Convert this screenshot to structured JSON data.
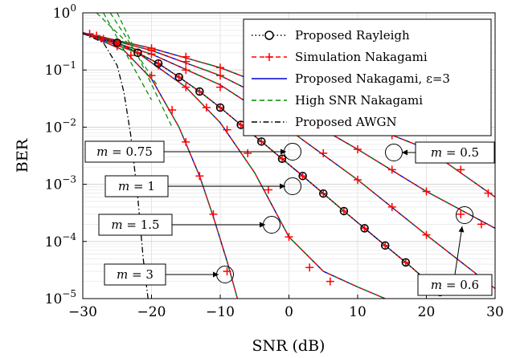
{
  "chart_data": {
    "type": "line",
    "xlabel": "SNR (dB)",
    "ylabel": "BER",
    "xlim": [
      -30,
      30
    ],
    "ylim": [
      1e-05,
      1
    ],
    "yscale": "log",
    "grid": true,
    "legend_position": "top-right",
    "x_ticks": [
      -30,
      -20,
      -10,
      0,
      10,
      20,
      30
    ],
    "x_tick_labels": [
      "−30",
      "−20",
      "−10",
      "0",
      "10",
      "20",
      "30"
    ],
    "y_tick_labels": [
      {
        "base": "10",
        "exp": "0",
        "value": 1
      },
      {
        "base": "10",
        "exp": "−1",
        "value": 0.1
      },
      {
        "base": "10",
        "exp": "−2",
        "value": 0.01
      },
      {
        "base": "10",
        "exp": "−3",
        "value": 0.001
      },
      {
        "base": "10",
        "exp": "−4",
        "value": 0.0001
      },
      {
        "base": "10",
        "exp": "−5",
        "value": 1e-05
      }
    ],
    "legend": [
      {
        "label": "Proposed Rayleigh",
        "color": "#000000",
        "style": "dotted-circle"
      },
      {
        "label": "Simulation Nakagami",
        "color": "#ff0000",
        "style": "dashed-plus"
      },
      {
        "label": "Proposed Nakagami, ε=3",
        "color": "#0000cc",
        "style": "solid"
      },
      {
        "label": "High SNR Nakagami",
        "color": "#008800",
        "style": "dashed"
      },
      {
        "label": "Proposed AWGN",
        "color": "#000000",
        "style": "dashdot"
      }
    ],
    "annotations": [
      {
        "var": "m",
        "text": " = 0.75"
      },
      {
        "var": "m",
        "text": " = 0.5"
      },
      {
        "var": "m",
        "text": " = 1"
      },
      {
        "var": "m",
        "text": " = 1.5"
      },
      {
        "var": "m",
        "text": " = 3"
      },
      {
        "var": "m",
        "text": " = 0.6"
      }
    ],
    "series": [
      {
        "m": 0.5,
        "x": [
          -30,
          -20,
          -10,
          0,
          10,
          20,
          30
        ],
        "y": [
          0.45,
          0.24,
          0.11,
          0.038,
          0.0125,
          0.0042,
          0.0006
        ]
      },
      {
        "m": 0.6,
        "x": [
          -30,
          -20,
          -10,
          0,
          10,
          20,
          30
        ],
        "y": [
          0.45,
          0.22,
          0.08,
          0.02,
          0.0041,
          0.00075,
          0.00017
        ]
      },
      {
        "m": 0.75,
        "x": [
          -30,
          -20,
          -10,
          0,
          10,
          20,
          30
        ],
        "y": [
          0.45,
          0.19,
          0.055,
          0.009,
          0.0012,
          0.00013,
          1.5e-05
        ]
      },
      {
        "m": 1,
        "name": "Proposed Rayleigh",
        "x": [
          -30,
          -25,
          -22,
          -19,
          -16,
          -13,
          -10,
          -7,
          -4,
          -1,
          2,
          5,
          8,
          11,
          14,
          17,
          20,
          22
        ],
        "y": [
          0.43,
          0.3,
          0.2,
          0.13,
          0.075,
          0.042,
          0.022,
          0.011,
          0.0056,
          0.0028,
          0.0014,
          0.00069,
          0.00034,
          0.00017,
          8.5e-05,
          4.3e-05,
          2.1e-05,
          1.3e-05
        ]
      },
      {
        "m": 1.5,
        "x": [
          -30,
          -22,
          -15,
          -10,
          -5,
          0,
          5,
          10,
          14
        ],
        "y": [
          0.45,
          0.2,
          0.05,
          0.012,
          0.0016,
          0.00012,
          3e-05,
          1.6e-05,
          1e-05
        ]
      },
      {
        "m": 3,
        "x": [
          -30,
          -24,
          -20,
          -16,
          -13,
          -11,
          -9,
          -7.5
        ],
        "y": [
          0.45,
          0.22,
          0.07,
          0.01,
          0.0014,
          0.00027,
          4.5e-05,
          1e-05
        ]
      },
      {
        "name": "Proposed AWGN",
        "x": [
          -30,
          -27,
          -25,
          -24,
          -23,
          -22,
          -21.2,
          -20.5
        ],
        "y": [
          0.44,
          0.3,
          0.12,
          0.04,
          0.007,
          0.0006,
          5e-05,
          1e-05
        ]
      }
    ],
    "simulation_points": {
      "m3": {
        "x": [
          -29,
          -27,
          -25,
          -23,
          -20,
          -17,
          -15,
          -13,
          -11,
          -9
        ],
        "y": [
          0.43,
          0.35,
          0.26,
          0.18,
          0.08,
          0.02,
          0.0055,
          0.0014,
          0.0003,
          3e-05
        ]
      },
      "m1.5": {
        "x": [
          -28,
          -25,
          -22,
          -19,
          -15,
          -12,
          -9,
          -6,
          -3,
          0,
          3,
          6
        ],
        "y": [
          0.4,
          0.3,
          0.2,
          0.12,
          0.05,
          0.022,
          0.009,
          0.0035,
          0.0008,
          0.00012,
          3.5e-05,
          2e-05
        ]
      },
      "m1": {
        "x": [
          -25,
          -22,
          -19,
          -16,
          -13,
          -10,
          -7,
          -4,
          -1,
          2,
          5,
          8,
          11,
          14,
          17
        ],
        "y": [
          0.3,
          0.2,
          0.13,
          0.075,
          0.042,
          0.022,
          0.011,
          0.0056,
          0.0028,
          0.0014,
          0.00069,
          0.00034,
          0.00017,
          8.5e-05,
          4.3e-05
        ]
      },
      "m0.75": {
        "x": [
          -25,
          -20,
          -15,
          -10,
          -5,
          0,
          5,
          10,
          15,
          20
        ],
        "y": [
          0.28,
          0.19,
          0.1,
          0.05,
          0.022,
          0.009,
          0.0035,
          0.0012,
          0.0004,
          0.00013
        ]
      },
      "m0.6": {
        "x": [
          -25,
          -20,
          -15,
          -10,
          -5,
          0,
          5,
          10,
          15,
          20,
          25,
          28
        ],
        "y": [
          0.29,
          0.22,
          0.14,
          0.08,
          0.045,
          0.02,
          0.009,
          0.0041,
          0.0018,
          0.00075,
          0.0003,
          0.0002
        ]
      },
      "m0.5": {
        "x": [
          -25,
          -20,
          -15,
          -10,
          -5,
          0,
          5,
          10,
          15,
          20,
          25,
          29
        ],
        "y": [
          0.3,
          0.24,
          0.17,
          0.11,
          0.065,
          0.038,
          0.022,
          0.0125,
          0.0072,
          0.0042,
          0.0018,
          0.0007
        ]
      }
    }
  }
}
